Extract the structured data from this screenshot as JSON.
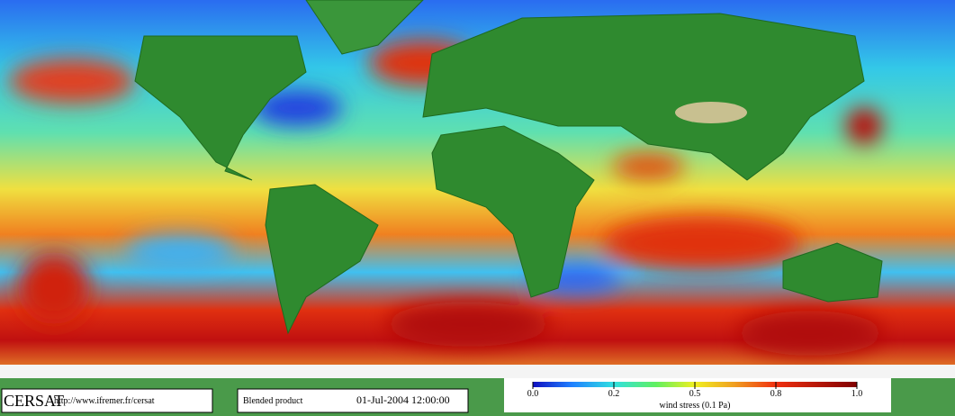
{
  "header": {
    "logo": "CERSAT",
    "url": "http://www.ifremer.fr/cersat",
    "product": "Blended product",
    "date": "01-Jul-2004 12:00:00"
  },
  "colorbar": {
    "label": "wind stress (0.1 Pa)",
    "ticks": [
      {
        "value": 0,
        "label": "0.0"
      },
      {
        "value": 0.2,
        "label": "0.2"
      },
      {
        "value": 0.5,
        "label": "0.5"
      },
      {
        "value": 0.8,
        "label": "0.8"
      },
      {
        "value": 1,
        "label": "1.0"
      }
    ]
  }
}
